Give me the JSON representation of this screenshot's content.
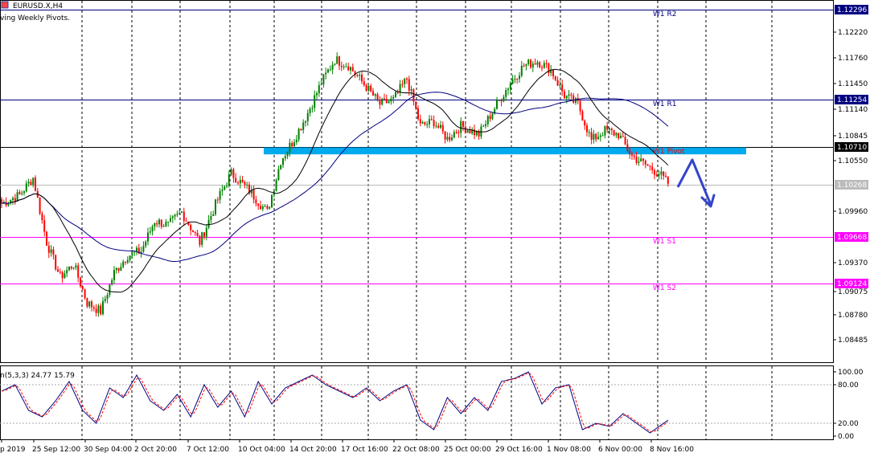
{
  "header": {
    "symbol": "EURUSD.X,H4",
    "indicator_note": "ving Weekly Pivots."
  },
  "stoch_label": "n(5,3,3) 24.77 15.79",
  "colors": {
    "up": "#008000",
    "down": "#ff0000",
    "r_line": "#000080",
    "s_line": "#ff00ff",
    "zone": "#00aaee",
    "ma_fast": "#000000",
    "ma_slow": "#000080",
    "arrow": "#3344cc"
  },
  "price_axis": [
    "1.12220",
    "1.11760",
    "1.11450",
    "1.11140",
    "1.10845",
    "1.10550",
    "1.09960",
    "1.09370",
    "1.09075",
    "1.08780",
    "1.08485"
  ],
  "price_tags": {
    "r2": "1.12296",
    "r1": "1.11254",
    "pivot": "1.10710",
    "current": "1.10268",
    "s1": "1.09668",
    "s2": "1.09124"
  },
  "pivot_labels": {
    "r2": "W1 R2",
    "r1": "W1 R1",
    "pivot": "W1 Pivot",
    "s1": "W1 S1",
    "s2": "W1 S2"
  },
  "stoch_axis": [
    "100.00",
    "80.00",
    "20.00",
    "0.00"
  ],
  "time_axis": [
    "p 2019",
    "25 Sep 12:00",
    "30 Sep 04:00",
    "2 Oct 20:00",
    "7 Oct 12:00",
    "10 Oct 04:00",
    "14 Oct 20:00",
    "17 Oct 16:00",
    "22 Oct 08:00",
    "25 Oct 00:00",
    "29 Oct 16:00",
    "1 Nov 08:00",
    "6 Nov 00:00",
    "8 Nov 16:00"
  ],
  "chart_data": {
    "type": "candlestick",
    "symbol": "EURUSD.X",
    "timeframe": "H4",
    "ylim": [
      1.0825,
      1.1245
    ],
    "levels": {
      "r2": 1.12296,
      "r1": 1.11254,
      "pivot": 1.1071,
      "s1": 1.09668,
      "s2": 1.09124,
      "current": 1.10268
    },
    "resistance_zone": [
      1.1062,
      1.107
    ],
    "close_anchors": [
      [
        0,
        1.1005
      ],
      [
        8,
        1.1015
      ],
      [
        14,
        1.1035
      ],
      [
        20,
        1.096
      ],
      [
        26,
        1.092
      ],
      [
        32,
        1.0935
      ],
      [
        38,
        1.089
      ],
      [
        44,
        1.088
      ],
      [
        50,
        1.0925
      ],
      [
        56,
        1.0945
      ],
      [
        62,
        1.095
      ],
      [
        68,
        1.0985
      ],
      [
        74,
        1.098
      ],
      [
        80,
        1.0995
      ],
      [
        88,
        1.096
      ],
      [
        96,
        1.101
      ],
      [
        102,
        1.104
      ],
      [
        110,
        1.102
      ],
      [
        118,
        1.0995
      ],
      [
        124,
        1.1055
      ],
      [
        130,
        1.108
      ],
      [
        136,
        1.111
      ],
      [
        142,
        1.1145
      ],
      [
        148,
        1.1172
      ],
      [
        154,
        1.1165
      ],
      [
        162,
        1.114
      ],
      [
        168,
        1.112
      ],
      [
        174,
        1.1125
      ],
      [
        180,
        1.115
      ],
      [
        186,
        1.1095
      ],
      [
        192,
        1.11
      ],
      [
        198,
        1.108
      ],
      [
        204,
        1.1095
      ],
      [
        212,
        1.1085
      ],
      [
        220,
        1.112
      ],
      [
        226,
        1.1145
      ],
      [
        232,
        1.1165
      ],
      [
        238,
        1.117
      ],
      [
        244,
        1.116
      ],
      [
        250,
        1.113
      ],
      [
        256,
        1.112
      ],
      [
        262,
        1.1078
      ],
      [
        268,
        1.109
      ],
      [
        274,
        1.1085
      ],
      [
        280,
        1.106
      ],
      [
        286,
        1.105
      ],
      [
        292,
        1.104
      ],
      [
        296,
        1.1028
      ]
    ],
    "stoch_k_anchors": [
      [
        0,
        70
      ],
      [
        6,
        80
      ],
      [
        12,
        40
      ],
      [
        18,
        30
      ],
      [
        24,
        55
      ],
      [
        30,
        85
      ],
      [
        36,
        40
      ],
      [
        42,
        20
      ],
      [
        48,
        75
      ],
      [
        54,
        60
      ],
      [
        60,
        95
      ],
      [
        66,
        55
      ],
      [
        72,
        40
      ],
      [
        78,
        65
      ],
      [
        84,
        30
      ],
      [
        90,
        80
      ],
      [
        96,
        45
      ],
      [
        102,
        70
      ],
      [
        108,
        30
      ],
      [
        114,
        85
      ],
      [
        120,
        50
      ],
      [
        126,
        75
      ],
      [
        132,
        85
      ],
      [
        138,
        95
      ],
      [
        144,
        80
      ],
      [
        150,
        70
      ],
      [
        156,
        60
      ],
      [
        162,
        75
      ],
      [
        168,
        55
      ],
      [
        174,
        70
      ],
      [
        180,
        80
      ],
      [
        186,
        25
      ],
      [
        192,
        10
      ],
      [
        198,
        60
      ],
      [
        204,
        35
      ],
      [
        210,
        60
      ],
      [
        216,
        40
      ],
      [
        222,
        85
      ],
      [
        228,
        90
      ],
      [
        234,
        100
      ],
      [
        240,
        50
      ],
      [
        246,
        75
      ],
      [
        252,
        80
      ],
      [
        258,
        10
      ],
      [
        264,
        20
      ],
      [
        270,
        15
      ],
      [
        276,
        35
      ],
      [
        282,
        20
      ],
      [
        288,
        5
      ],
      [
        292,
        15
      ],
      [
        296,
        24.77
      ]
    ],
    "stoch_axis_values": [
      100,
      80,
      20,
      0
    ]
  }
}
